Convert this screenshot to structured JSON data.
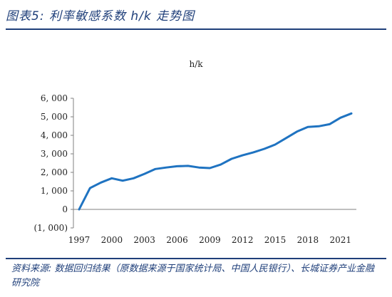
{
  "figure": {
    "title": "图表5:  利率敏感系数 h/k 走势图",
    "source": "资料来源: 数据回归结果（原数据来源于国家统计局、中国人民银行）、长城证券产业金融研究院"
  },
  "chart_data": {
    "type": "line",
    "title": "",
    "unit_label": "h/k",
    "xlabel": "",
    "ylabel": "",
    "xlim": [
      1997,
      2022
    ],
    "ylim": [
      -1000,
      6000
    ],
    "yticks": [
      6000,
      5000,
      4000,
      3000,
      2000,
      1000,
      0,
      -1000
    ],
    "ytick_labels": [
      "6, 000",
      "5, 000",
      "4, 000",
      "3, 000",
      "2, 000",
      "1, 000",
      "0",
      "(1, 000)"
    ],
    "negative_label_color": "#cc0000",
    "xticks": [
      1997,
      2000,
      2003,
      2006,
      2009,
      2012,
      2015,
      2018,
      2021
    ],
    "xtick_labels": [
      "1997",
      "2000",
      "2003",
      "2006",
      "2009",
      "2012",
      "2015",
      "2018",
      "2021"
    ],
    "grid": false,
    "legend": "none",
    "series": [
      {
        "color": "#1f73c1",
        "x": [
          1997,
          1998,
          1999,
          2000,
          2001,
          2002,
          2003,
          2004,
          2005,
          2006,
          2007,
          2008,
          2009,
          2010,
          2011,
          2012,
          2013,
          2014,
          2015,
          2016,
          2017,
          2018,
          2019,
          2020,
          2021,
          2022
        ],
        "y": [
          0,
          1150,
          1450,
          1680,
          1550,
          1680,
          1920,
          2180,
          2260,
          2330,
          2350,
          2260,
          2230,
          2420,
          2730,
          2920,
          3080,
          3270,
          3500,
          3850,
          4200,
          4450,
          4490,
          4600,
          4950,
          5180
        ]
      }
    ]
  }
}
